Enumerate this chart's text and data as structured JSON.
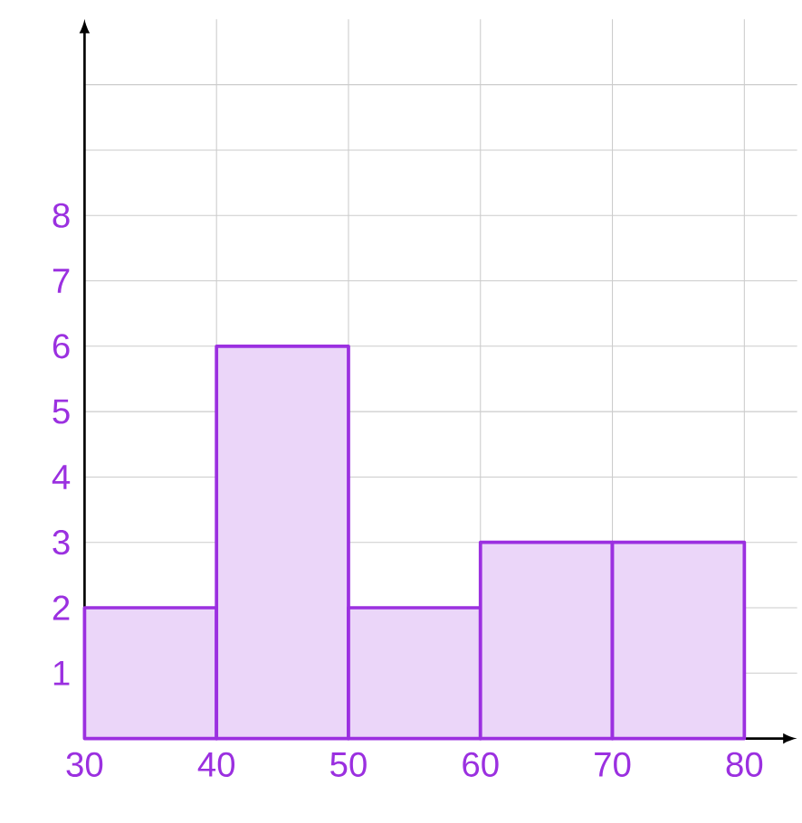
{
  "chart_data": {
    "type": "histogram",
    "bins": [
      30,
      40,
      50,
      60,
      70,
      80
    ],
    "values": [
      2,
      6,
      2,
      3,
      3
    ],
    "color": "#9b30e0",
    "xlim": [
      30,
      84
    ],
    "ylim": [
      0,
      11
    ],
    "xticks": [
      30,
      40,
      50,
      60,
      70,
      80
    ],
    "yticks": [
      1,
      2,
      3,
      4,
      5,
      6,
      7,
      8,
      {
        "value": 9,
        "label": null
      },
      {
        "value": 10,
        "label": null
      }
    ],
    "grid": true
  }
}
